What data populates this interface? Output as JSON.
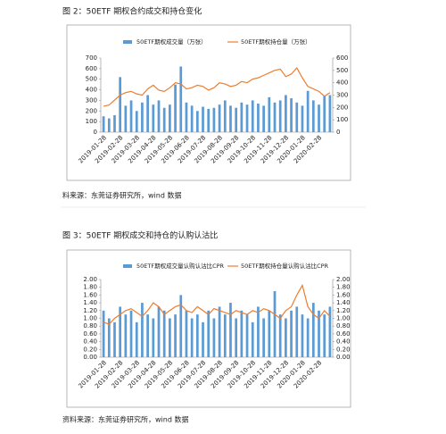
{
  "chart_data": [
    {
      "type": "bar-line",
      "title": "图 2：50ETF 期权合约成交和持仓变化",
      "note": "料来源：东莞证券研究所，wind 数据",
      "categories": [
        "2019-01-28",
        null,
        null,
        "2019-02-28",
        null,
        null,
        "2019-03-28",
        null,
        null,
        "2019-04-28",
        null,
        null,
        "2019-05-28",
        null,
        null,
        "2019-06-28",
        null,
        null,
        "2019-07-28",
        null,
        null,
        "2019-08-28",
        null,
        null,
        "2019-09-28",
        null,
        null,
        "2019-10-28",
        null,
        null,
        "2019-11-28",
        null,
        null,
        "2019-12-28",
        null,
        null,
        "2020-01-28",
        null,
        null,
        "2020-02-28",
        null,
        null
      ],
      "series": [
        {
          "name": "50ETF期权成交量（万张）",
          "color": "#5b9bd5",
          "kind": "bar",
          "values": [
            150,
            130,
            160,
            520,
            250,
            300,
            200,
            280,
            350,
            260,
            300,
            230,
            260,
            450,
            620,
            280,
            250,
            200,
            240,
            220,
            230,
            260,
            300,
            250,
            230,
            280,
            260,
            300,
            270,
            250,
            330,
            280,
            300,
            350,
            320,
            280,
            250,
            390,
            300,
            260,
            340,
            350
          ]
        },
        {
          "name": "50ETF期权持仓量（万张）",
          "color": "#ed7d31",
          "kind": "line",
          "axis": "y2",
          "values": [
            210,
            220,
            260,
            300,
            320,
            330,
            310,
            300,
            350,
            380,
            340,
            330,
            360,
            400,
            390,
            350,
            360,
            380,
            370,
            340,
            360,
            400,
            390,
            370,
            380,
            410,
            400,
            430,
            440,
            460,
            480,
            500,
            510,
            450,
            470,
            520,
            440,
            370,
            350,
            330,
            290,
            320
          ]
        }
      ],
      "ylim": [
        0,
        700
      ],
      "yticks": [
        0,
        100,
        200,
        300,
        400,
        500,
        600,
        700
      ],
      "y2lim": [
        0,
        600
      ],
      "y2ticks": [
        0,
        100,
        200,
        300,
        400,
        500,
        600
      ]
    },
    {
      "type": "bar-line",
      "title": "图 3：50ETF 期权成交和持仓的认购认沽比",
      "note": "资料来源：东莞证券研究所，wind 数据",
      "categories": [
        "2019-01-28",
        null,
        null,
        "2019-02-28",
        null,
        null,
        "2019-03-28",
        null,
        null,
        "2019-04-28",
        null,
        null,
        "2019-05-28",
        null,
        null,
        "2019-06-28",
        null,
        null,
        "2019-07-28",
        null,
        null,
        "2019-08-28",
        null,
        null,
        "2019-09-28",
        null,
        null,
        "2019-10-28",
        null,
        null,
        "2019-11-28",
        null,
        null,
        "2019-12-28",
        null,
        null,
        "2020-01-28",
        null,
        null,
        "2020-02-28",
        null,
        null
      ],
      "series": [
        {
          "name": "50ETF期权成交量认购认沽比CPR",
          "color": "#5b9bd5",
          "kind": "bar",
          "values": [
            1.2,
            1.0,
            0.9,
            1.3,
            1.1,
            1.2,
            0.9,
            1.4,
            1.1,
            1.0,
            1.3,
            1.2,
            1.0,
            1.1,
            1.6,
            1.2,
            1.0,
            1.1,
            0.9,
            1.2,
            1.0,
            1.3,
            1.1,
            1.4,
            1.0,
            1.2,
            1.1,
            0.9,
            1.3,
            1.0,
            1.2,
            1.7,
            1.1,
            1.0,
            1.2,
            1.3,
            1.1,
            1.0,
            1.4,
            1.2,
            1.1,
            1.3
          ]
        },
        {
          "name": "50ETF期权持仓量认购认沽比CPR",
          "color": "#ed7d31",
          "kind": "line",
          "axis": "y2",
          "values": [
            0.9,
            0.85,
            1.0,
            1.1,
            1.2,
            1.25,
            1.15,
            1.05,
            1.2,
            1.4,
            1.3,
            1.1,
            1.2,
            1.3,
            1.35,
            1.2,
            1.15,
            1.3,
            1.2,
            1.1,
            1.25,
            1.2,
            1.15,
            1.1,
            1.2,
            1.15,
            1.1,
            1.2,
            1.15,
            1.25,
            1.2,
            1.1,
            1.0,
            1.2,
            1.3,
            1.6,
            1.85,
            1.3,
            1.1,
            1.0,
            1.2,
            1.05
          ]
        }
      ],
      "ylim": [
        0,
        2
      ],
      "yticks": [
        {
          "value": 0,
          "label": "0.00"
        },
        {
          "value": 0.2,
          "label": "0.20"
        },
        {
          "value": 0.4,
          "label": "0.40"
        },
        {
          "value": 0.6,
          "label": "0.60"
        },
        {
          "value": 0.8,
          "label": "0.80"
        },
        {
          "value": 1,
          "label": "1.00"
        },
        {
          "value": 1.2,
          "label": "1.20"
        },
        {
          "value": 1.4,
          "label": "1.40"
        },
        {
          "value": 1.6,
          "label": "1.60"
        },
        {
          "value": 1.8,
          "label": "1.80"
        },
        {
          "value": 2,
          "label": "2.00"
        }
      ],
      "y2lim": [
        0,
        2
      ],
      "y2ticks": [
        {
          "value": 0,
          "label": "0.00"
        },
        {
          "value": 0.2,
          "label": "0.20"
        },
        {
          "value": 0.4,
          "label": "0.40"
        },
        {
          "value": 0.6,
          "label": "0.60"
        },
        {
          "value": 0.8,
          "label": "0.80"
        },
        {
          "value": 1,
          "label": "1.00"
        },
        {
          "value": 1.2,
          "label": "1.20"
        },
        {
          "value": 1.4,
          "label": "1.40"
        },
        {
          "value": 1.6,
          "label": "1.60"
        },
        {
          "value": 1.8,
          "label": "1.80"
        },
        {
          "value": 2,
          "label": "2.00"
        }
      ]
    }
  ]
}
